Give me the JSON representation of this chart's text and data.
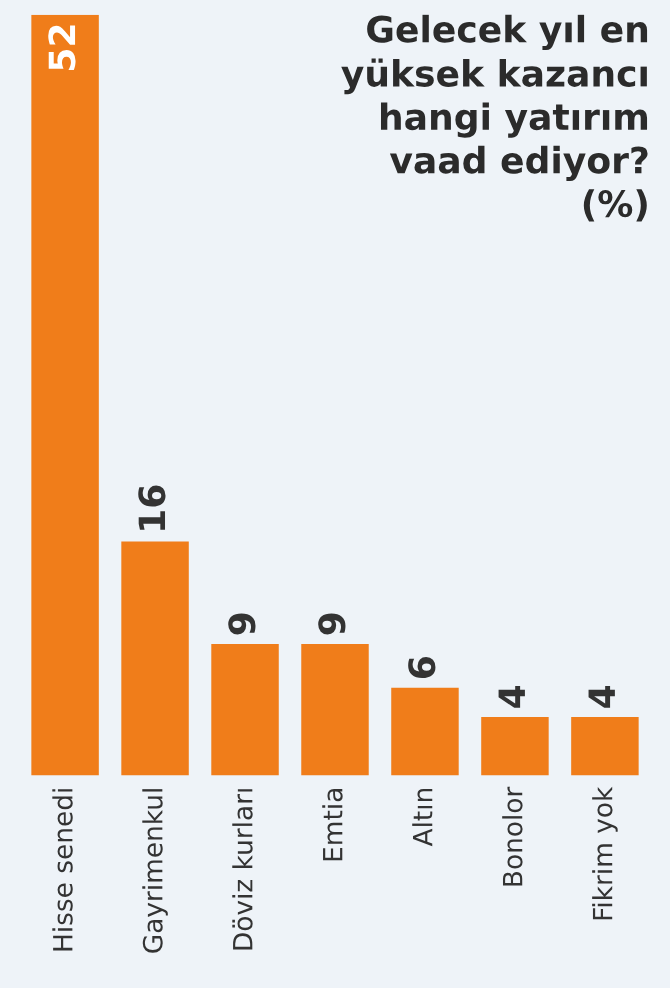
{
  "chart_data": {
    "type": "bar",
    "title": "Gelecek yıl en\nyüksek kazancı\nhangi yatırım\nvaad ediyor?\n(%)",
    "categories": [
      "Hisse senedi",
      "Gayrimenkul",
      "Döviz kurları",
      "Emtia",
      "Altın",
      "Bonolor",
      "Fikrim yok"
    ],
    "values": [
      52,
      16,
      9,
      9,
      6,
      4,
      4
    ],
    "color": "#f07d1a",
    "data_labels": true
  }
}
